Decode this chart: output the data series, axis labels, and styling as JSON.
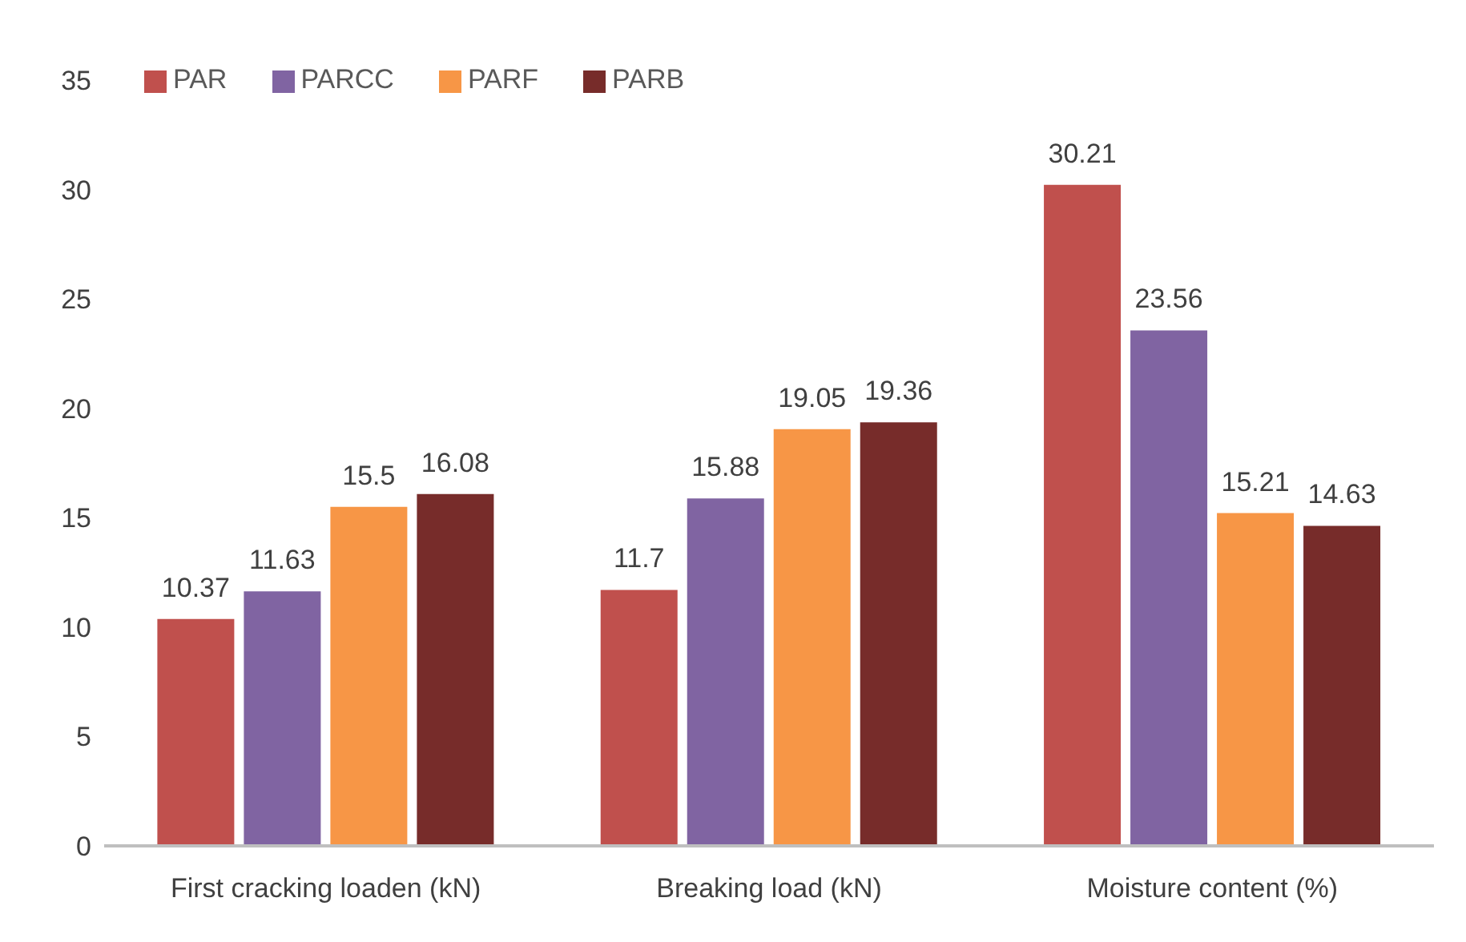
{
  "chart_data": {
    "type": "bar",
    "categories": [
      "First cracking loaden (kN)",
      "Breaking load (kN)",
      "Moisture content (%)"
    ],
    "series": [
      {
        "name": "PAR",
        "color": "#c0504d",
        "values": [
          10.37,
          11.7,
          30.21
        ]
      },
      {
        "name": "PARCC",
        "color": "#8064a2",
        "values": [
          11.63,
          15.88,
          23.56
        ]
      },
      {
        "name": "PARF",
        "color": "#f79646",
        "values": [
          15.5,
          19.05,
          15.21
        ]
      },
      {
        "name": "PARB",
        "color": "#772c2a",
        "values": [
          16.08,
          19.36,
          14.63
        ]
      }
    ],
    "ylim": [
      0,
      35
    ],
    "yticks": [
      0,
      5,
      10,
      15,
      20,
      25,
      30,
      35
    ],
    "legend": "top left",
    "data_labels": true
  }
}
